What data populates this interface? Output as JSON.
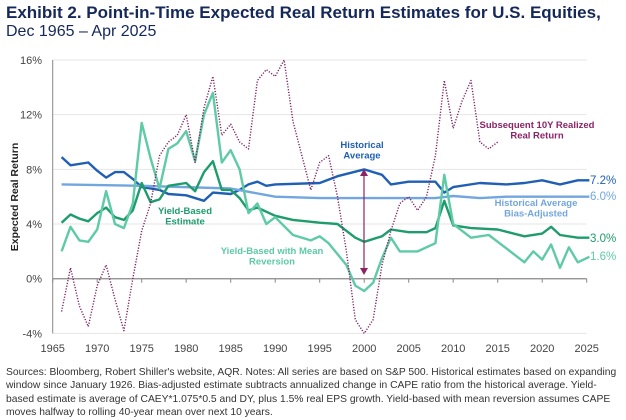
{
  "title": "Exhibit 2. Point-in-Time Expected Real Return Estimates for U.S. Equities,",
  "subtitle": "Dec 1965 – Apr 2025",
  "notes": "Sources: Bloomberg, Robert Shiller's website, AQR. Notes: All series are based on S&P 500. Historical estimates based on expanding window since January 1926. Bias-adjusted estimate subtracts annualized change in CAPE ratio from the historical average. Yield-based estimate is average of CAEY*1.075*0.5 and DY, plus 1.5% real EPS growth. Yield-based with mean reversion assumes CAPE moves halfway to rolling 40-year mean over next 10 years.",
  "chart_data": {
    "type": "line",
    "title": "Point-in-Time Expected Real Return Estimates for U.S. Equities",
    "xlabel": "",
    "ylabel": "Expected Real Return",
    "xlim": [
      1965,
      2025
    ],
    "ylim": [
      -4,
      16
    ],
    "xticks": [
      "1965",
      "1970",
      "1975",
      "1980",
      "1985",
      "1990",
      "1995",
      "2000",
      "2005",
      "2010",
      "2015",
      "2020",
      "2025"
    ],
    "yticks": [
      {
        "v": 16,
        "label": "16%"
      },
      {
        "v": 12,
        "label": "12%"
      },
      {
        "v": 8,
        "label": "8%"
      },
      {
        "v": 4,
        "label": "4%"
      },
      {
        "v": 0,
        "label": "0%"
      },
      {
        "v": -4,
        "label": "-4%"
      }
    ],
    "grid": true,
    "series": [
      {
        "name": "Subsequent 10Y Realized Real Return",
        "color": "#7d1f62",
        "dotted": true,
        "label_lines": [
          "Subsequent 10Y Realized",
          "Real Return"
        ],
        "x": [
          1966,
          1967,
          1968,
          1969,
          1970,
          1971,
          1972,
          1973,
          1974,
          1975,
          1976,
          1977,
          1978,
          1979,
          1980,
          1981,
          1982,
          1983,
          1984,
          1985,
          1986,
          1987,
          1988,
          1989,
          1990,
          1991,
          1992,
          1993,
          1994,
          1995,
          1996,
          1997,
          1998,
          1999,
          2000,
          2001,
          2002,
          2003,
          2004,
          2005,
          2006,
          2007,
          2008,
          2009,
          2010,
          2011,
          2012,
          2013,
          2014,
          2015
        ],
        "y": [
          -2.4,
          0.8,
          -2,
          -3.5,
          -0.5,
          1,
          -1.5,
          -3.8,
          0,
          3.5,
          5.5,
          9,
          10,
          10.5,
          12,
          8.5,
          12.5,
          14.8,
          10.5,
          11.3,
          10,
          9.5,
          14.5,
          15.3,
          14.8,
          16,
          11.5,
          9,
          6.5,
          8.5,
          9,
          6,
          2,
          -3,
          -4,
          -3,
          1,
          3.5,
          5.5,
          6,
          5,
          6,
          9,
          14.5,
          11,
          13,
          14.5,
          10,
          9.5,
          10
        ]
      },
      {
        "name": "Historical Average",
        "color": "#1f5fb4",
        "end_label": "7.2%",
        "label_lines": [
          "Historical",
          "Average"
        ],
        "x": [
          1966,
          1967,
          1969,
          1970,
          1971,
          1972,
          1973,
          1974,
          1975,
          1976,
          1977,
          1978,
          1980,
          1982,
          1983,
          1985,
          1986,
          1987,
          1988,
          1989,
          1990,
          1995,
          1997,
          2000,
          2002,
          2003,
          2005,
          2008,
          2009,
          2010,
          2013,
          2016,
          2018,
          2020,
          2022,
          2024,
          2025.3
        ],
        "y": [
          8.9,
          8.3,
          8.5,
          7.9,
          7.4,
          7.8,
          7.8,
          7.3,
          6.7,
          6.6,
          6.5,
          6.2,
          6.1,
          5.7,
          6.3,
          6.2,
          6.5,
          6.9,
          7.1,
          6.8,
          6.9,
          7,
          7.5,
          8,
          7.6,
          6.9,
          7.1,
          7.1,
          6.3,
          6.7,
          7,
          6.9,
          7,
          7.2,
          6.9,
          7.2,
          7.2
        ]
      },
      {
        "name": "Historical Average Bias-Adjusted",
        "color": "#72a6de",
        "end_label": "6.0%",
        "label_lines": [
          "Historical Average",
          "Bias-Adjusted"
        ],
        "x": [
          1966,
          1975,
          1985,
          1990,
          1995,
          2008,
          2010,
          2013,
          2016,
          2025.3
        ],
        "y": [
          6.9,
          6.8,
          6.6,
          6.0,
          5.9,
          5.9,
          6.05,
          5.9,
          6.0,
          6.0
        ]
      },
      {
        "name": "Yield-Based Estimate",
        "color": "#1e9c6c",
        "end_label": "3.0%",
        "label_lines": [
          "Yield-Based",
          "Estimate"
        ],
        "x": [
          1966,
          1967,
          1968,
          1969,
          1970,
          1971,
          1972,
          1973,
          1974,
          1975,
          1976,
          1977,
          1978,
          1980,
          1981,
          1982,
          1983,
          1984,
          1985,
          1986,
          1987,
          1988,
          1990,
          1992,
          1995,
          1997,
          1999,
          2000,
          2002,
          2003,
          2005,
          2007,
          2008,
          2009,
          2010,
          2012,
          2015,
          2018,
          2020,
          2021,
          2022,
          2024,
          2025.3
        ],
        "y": [
          4.1,
          4.7,
          4.4,
          4.2,
          4.8,
          5.2,
          4.5,
          4.3,
          5,
          7,
          5.6,
          5.8,
          6.8,
          7,
          6.4,
          7.8,
          8.6,
          6.5,
          6.5,
          5.9,
          5,
          5.2,
          4.6,
          4.3,
          4.1,
          4,
          3,
          2.7,
          3.1,
          3.6,
          3.4,
          3.4,
          3.7,
          5.7,
          3.9,
          3.7,
          3.6,
          3.1,
          3.3,
          3.8,
          3.2,
          3,
          3
        ]
      },
      {
        "name": "Yield-Based with Mean Reversion",
        "color": "#5ecaa6",
        "end_label": "1.6%",
        "label_lines": [
          "Yield-Based with Mean",
          "Reversion"
        ],
        "x": [
          1966,
          1967,
          1968,
          1969,
          1970,
          1971,
          1972,
          1973,
          1974,
          1975,
          1976,
          1977,
          1978,
          1979,
          1980,
          1981,
          1982,
          1983,
          1984,
          1985,
          1986,
          1987,
          1988,
          1989,
          1990,
          1992,
          1994,
          1995,
          1996,
          1998,
          1999,
          2000,
          2001,
          2002,
          2003,
          2004,
          2006,
          2008,
          2009,
          2010,
          2012,
          2014,
          2016,
          2018,
          2019,
          2020,
          2021,
          2022,
          2023,
          2024,
          2025.3
        ],
        "y": [
          2,
          3.8,
          2.8,
          2.7,
          3.6,
          6.4,
          4,
          3.7,
          5.5,
          11.4,
          8.8,
          6.6,
          9.5,
          9.9,
          10.8,
          8.6,
          12,
          13.6,
          8.5,
          9.4,
          8,
          4.8,
          5.5,
          4,
          4.5,
          3.2,
          2.8,
          3.1,
          2.6,
          1,
          -0.5,
          -0.9,
          -0.3,
          1.5,
          3,
          2,
          2,
          2.6,
          7.6,
          4,
          3,
          3.2,
          2.2,
          1.2,
          2,
          1.4,
          2.5,
          0.8,
          2.3,
          1.2,
          1.6
        ]
      }
    ]
  }
}
